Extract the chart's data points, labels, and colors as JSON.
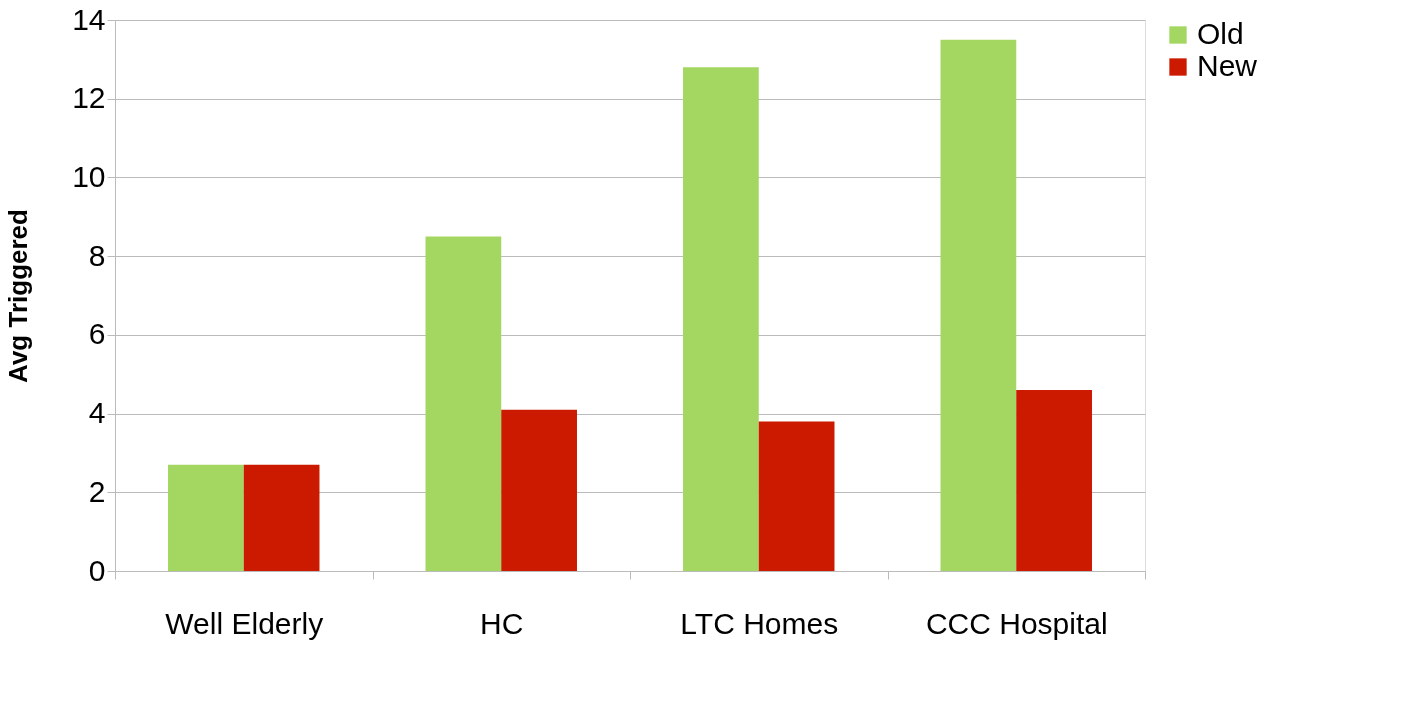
{
  "chart_data": {
    "type": "bar",
    "ylabel": "Avg Triggered",
    "categories": [
      "Well Elderly",
      "HC",
      "LTC Homes",
      "CCC Hospital"
    ],
    "series": [
      {
        "name": "Old",
        "color": "#a3d762",
        "values": [
          2.7,
          8.5,
          12.8,
          13.5
        ]
      },
      {
        "name": "New",
        "color": "#cc1a00",
        "values": [
          2.7,
          4.1,
          3.8,
          4.6
        ]
      }
    ],
    "ylim": [
      0,
      14
    ],
    "yticks": [
      0,
      2,
      4,
      6,
      8,
      10,
      12,
      14
    ],
    "grid": "y",
    "legend": "right"
  }
}
